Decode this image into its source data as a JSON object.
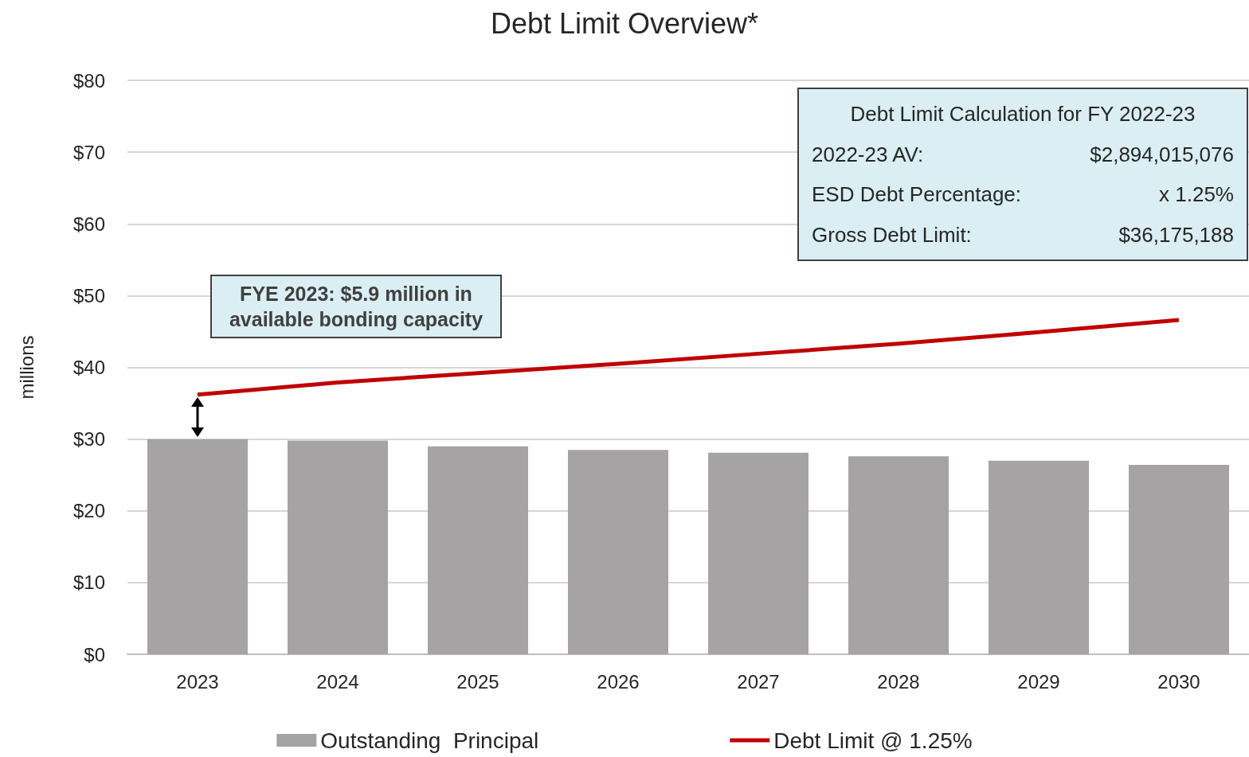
{
  "chart_data": {
    "type": "bar",
    "title": "Debt Limit Overview*",
    "ylabel": "millions",
    "categories": [
      "2023",
      "2024",
      "2025",
      "2026",
      "2027",
      "2028",
      "2029",
      "2030"
    ],
    "series": [
      {
        "name": "Outstanding  Principal",
        "color": "#a5a3a4",
        "values": [
          30.0,
          29.8,
          29.0,
          28.5,
          28.1,
          27.6,
          27.0,
          26.4
        ]
      },
      {
        "name": "Debt Limit @ 1.25%",
        "type": "line",
        "color": "#c00000",
        "values": [
          36.2,
          37.9,
          39.2,
          40.5,
          41.9,
          43.3,
          44.9,
          46.6
        ]
      }
    ],
    "ylim": [
      0,
      80
    ],
    "yticks": [
      {
        "value": 0,
        "label": "$0"
      },
      {
        "value": 10,
        "label": "$10"
      },
      {
        "value": 20,
        "label": "$20"
      },
      {
        "value": 30,
        "label": "$30"
      },
      {
        "value": 40,
        "label": "$40"
      },
      {
        "value": 50,
        "label": "$50"
      },
      {
        "value": 60,
        "label": "$60"
      },
      {
        "value": 70,
        "label": "$70"
      },
      {
        "value": 80,
        "label": "$80"
      }
    ],
    "grid": "y",
    "legend": "bottom",
    "marker": "none",
    "line_style": "solid",
    "annotations": [
      "FYE 2023: $5.9 million in available bonding capacity",
      "Debt Limit Calculation for FY 2022-23",
      "2022-23 AV:",
      "$2,894,015,076",
      "ESD Debt Percentage:",
      "x 1.25%",
      "Gross Debt Limit:",
      "$36,175,188"
    ]
  }
}
